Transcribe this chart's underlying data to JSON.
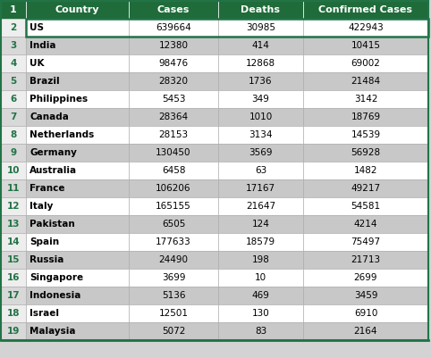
{
  "columns": [
    "Country",
    "Cases",
    "Deaths",
    "Confirmed Cases"
  ],
  "rows": [
    [
      "US",
      "639664",
      "30985",
      "422943"
    ],
    [
      "India",
      "12380",
      "414",
      "10415"
    ],
    [
      "UK",
      "98476",
      "12868",
      "69002"
    ],
    [
      "Brazil",
      "28320",
      "1736",
      "21484"
    ],
    [
      "Philippines",
      "5453",
      "349",
      "3142"
    ],
    [
      "Canada",
      "28364",
      "1010",
      "18769"
    ],
    [
      "Netherlands",
      "28153",
      "3134",
      "14539"
    ],
    [
      "Germany",
      "130450",
      "3569",
      "56928"
    ],
    [
      "Australia",
      "6458",
      "63",
      "1482"
    ],
    [
      "France",
      "106206",
      "17167",
      "49217"
    ],
    [
      "Italy",
      "165155",
      "21647",
      "54581"
    ],
    [
      "Pakistan",
      "6505",
      "124",
      "4214"
    ],
    [
      "Spain",
      "177633",
      "18579",
      "75497"
    ],
    [
      "Russia",
      "24490",
      "198",
      "21713"
    ],
    [
      "Singapore",
      "3699",
      "10",
      "2699"
    ],
    [
      "Indonesia",
      "5136",
      "469",
      "3459"
    ],
    [
      "Israel",
      "12501",
      "130",
      "6910"
    ],
    [
      "Malaysia",
      "5072",
      "83",
      "2164"
    ]
  ],
  "row_numbers": [
    2,
    3,
    4,
    5,
    6,
    7,
    8,
    9,
    10,
    11,
    12,
    13,
    14,
    15,
    16,
    17,
    18,
    19
  ],
  "header_bg": "#1f6b3a",
  "header_text": "#ffffff",
  "row_num_text_color": "#217346",
  "alt_row_bg_light": "#ffffff",
  "alt_row_bg_dark": "#c8c8c8",
  "data_text_color": "#000000",
  "fig_bg": "#d3d3d3",
  "outer_border_color": "#217346",
  "selected_row_border": "#217346",
  "figsize": [
    4.82,
    4.01
  ],
  "dpi": 100
}
